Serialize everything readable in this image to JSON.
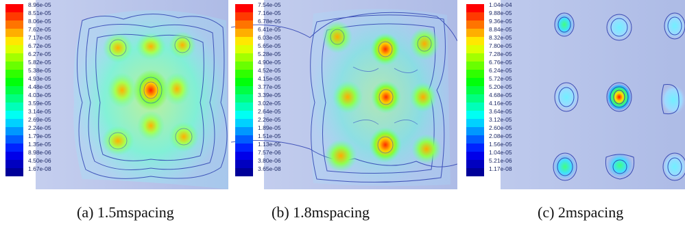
{
  "panels": [
    {
      "caption": "(a) 1.5mspacing",
      "legend": [
        "8.96e-05",
        "8.51e-05",
        "8.06e-05",
        "7.62e-05",
        "7.17e-05",
        "6.72e-05",
        "6.27e-05",
        "5.82e-05",
        "5.38e-05",
        "4.93e-05",
        "4.48e-05",
        "4.03e-05",
        "3.59e-05",
        "3.14e-05",
        "2.69e-05",
        "2.24e-05",
        "1.79e-05",
        "1.35e-05",
        "8.98e-06",
        "4.50e-06",
        "1.67e-08"
      ]
    },
    {
      "caption": "(b) 1.8mspacing",
      "legend": [
        "7.54e-05",
        "7.16e-05",
        "6.78e-05",
        "6.41e-05",
        "6.03e-05",
        "5.65e-05",
        "5.28e-05",
        "4.90e-05",
        "4.52e-05",
        "4.15e-05",
        "3.77e-05",
        "3.39e-05",
        "3.02e-05",
        "2.64e-05",
        "2.26e-05",
        "1.89e-05",
        "1.51e-05",
        "1.13e-05",
        "7.57e-06",
        "3.80e-06",
        "3.65e-08"
      ]
    },
    {
      "caption": "(c) 2mspacing",
      "legend": [
        "1.04e-04",
        "9.88e-05",
        "9.36e-05",
        "8.84e-05",
        "8.32e-05",
        "7.80e-05",
        "7.28e-05",
        "6.76e-05",
        "6.24e-05",
        "5.72e-05",
        "5.20e-05",
        "4.68e-05",
        "4.16e-05",
        "3.64e-05",
        "3.12e-05",
        "2.60e-05",
        "2.08e-05",
        "1.56e-05",
        "1.04e-05",
        "5.21e-06",
        "1.17e-08"
      ]
    }
  ],
  "colormap": [
    "#ff0000",
    "#ff3a00",
    "#ff7400",
    "#ffae00",
    "#ffe800",
    "#ddff00",
    "#a3ff00",
    "#69ff00",
    "#2fff00",
    "#00ff0b",
    "#00ff45",
    "#00ff7f",
    "#00ffb9",
    "#00fff3",
    "#00d1ff",
    "#0097ff",
    "#005dff",
    "#0023ff",
    "#0000e9",
    "#0000c0",
    "#000098"
  ],
  "colors": {
    "background": "#b6c2e8",
    "contour_outline": "#2c3fb0",
    "text": "#1e2a66"
  }
}
